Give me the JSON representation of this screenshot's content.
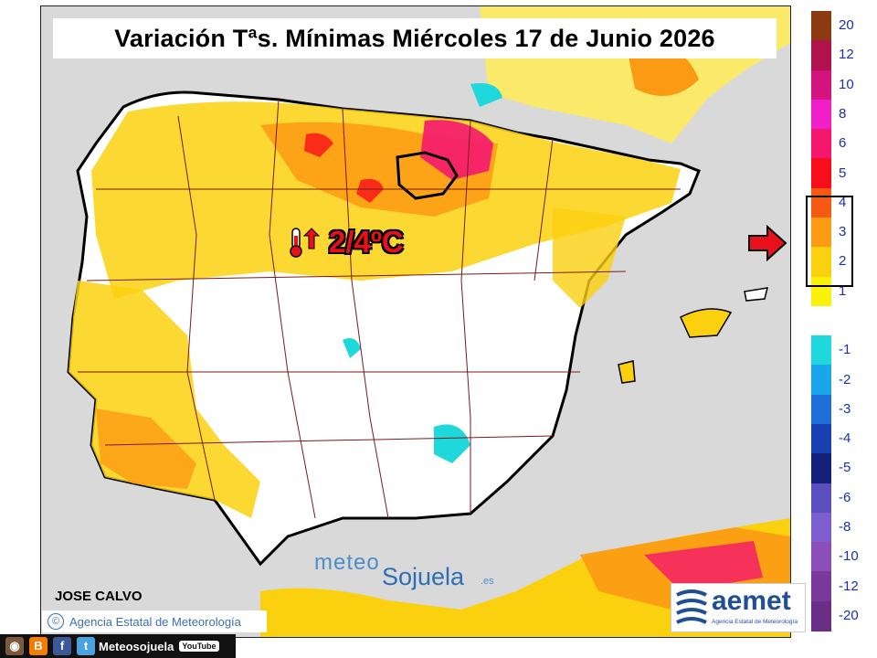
{
  "title": "Variación Tªs. Mínimas Miércoles 17 de Junio 2026",
  "highlight_label": "2/4ºC",
  "author": "JOSE CALVO",
  "agency_footer": "Agencia Estatal de Meteorología",
  "copyright_symbol": "©",
  "watermark": {
    "line1": "meteo",
    "line2": "Sojuela",
    "tld": ".es"
  },
  "aemet_logo": {
    "name": "aemet",
    "subtitle": "Agencia Estatal de Meteorología"
  },
  "social_bar": {
    "handle": "Meteosojuela",
    "youtube": "YouTube",
    "icons": [
      "instagram-icon",
      "blogger-icon",
      "facebook-icon",
      "twitter-icon",
      "youtube-icon"
    ]
  },
  "legend": {
    "unit": "ºC",
    "steps": [
      {
        "label": "20",
        "color": "#8b3a12"
      },
      {
        "label": "12",
        "color": "#b0124b"
      },
      {
        "label": "10",
        "color": "#d3137e"
      },
      {
        "label": "8",
        "color": "#f020c8"
      },
      {
        "label": "6",
        "color": "#f5176e"
      },
      {
        "label": "5",
        "color": "#f70e1a"
      },
      {
        "label": "4",
        "color": "#f55a12"
      },
      {
        "label": "3",
        "color": "#fb9a13"
      },
      {
        "label": "2",
        "color": "#fbd10f"
      },
      {
        "label": "1",
        "color": "#fbf20c"
      },
      {
        "label": "",
        "color": "#ffffff"
      },
      {
        "label": "-1",
        "color": "#1ed8dc"
      },
      {
        "label": "-2",
        "color": "#1aa6e8"
      },
      {
        "label": "-3",
        "color": "#1e6fd8"
      },
      {
        "label": "-4",
        "color": "#1a3fb0"
      },
      {
        "label": "-5",
        "color": "#15207a"
      },
      {
        "label": "-6",
        "color": "#5b4fc0"
      },
      {
        "label": "-8",
        "color": "#7d5ecf"
      },
      {
        "label": "-10",
        "color": "#8a4fb8"
      },
      {
        "label": "-12",
        "color": "#7a3a9c"
      },
      {
        "label": "-20",
        "color": "#6a2e86"
      }
    ],
    "highlighted_range": [
      "2",
      "4"
    ]
  },
  "colors": {
    "land_neutral": "#ffffff",
    "sea": "#d9d9d9",
    "border": "#000000",
    "province_lines": "#7a1a1a",
    "highlight_text": "#e8101a"
  }
}
